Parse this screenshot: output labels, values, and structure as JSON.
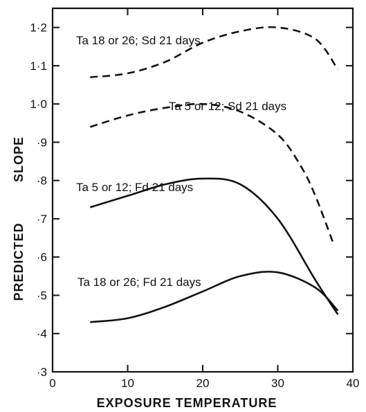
{
  "chart_data": {
    "type": "line",
    "title": "",
    "xlabel": "EXPOSURE TEMPERATURE",
    "ylabel_words": [
      "PREDICTED",
      "SLOPE"
    ],
    "xlim": [
      0,
      40
    ],
    "ylim": [
      0.3,
      1.25
    ],
    "x_ticks": [
      0,
      10,
      20,
      30,
      40
    ],
    "x_tick_labels": [
      "0",
      "10",
      "20",
      "30",
      "40"
    ],
    "y_ticks": [
      0.3,
      0.4,
      0.5,
      0.6,
      0.7,
      0.8,
      0.9,
      1.0,
      1.1,
      1.2
    ],
    "y_tick_labels": [
      "·3",
      "·4",
      "·5",
      "·6",
      "·7",
      "·8",
      "·9",
      "1·0",
      "1·1",
      "1·2"
    ],
    "grid": false,
    "series": [
      {
        "name": "Ta 18 or 26; Sd 21 days",
        "style": "dashed",
        "x": [
          5,
          10,
          15,
          20,
          25,
          30,
          35,
          38
        ],
        "y": [
          1.07,
          1.08,
          1.11,
          1.16,
          1.19,
          1.2,
          1.17,
          1.09
        ]
      },
      {
        "name": "Ta 5 or 12; Sd 21 days",
        "style": "dashed",
        "x": [
          5,
          10,
          15,
          20,
          25,
          30,
          33,
          35,
          37.5
        ],
        "y": [
          0.94,
          0.97,
          0.99,
          1.0,
          0.98,
          0.92,
          0.84,
          0.76,
          0.63
        ]
      },
      {
        "name": "Ta 5 or 12; Fd 21 days",
        "style": "solid",
        "x": [
          5,
          10,
          15,
          20,
          25,
          30,
          35,
          38
        ],
        "y": [
          0.73,
          0.76,
          0.79,
          0.805,
          0.79,
          0.7,
          0.54,
          0.45
        ]
      },
      {
        "name": "Ta 18 or 26; Fd 21 days",
        "style": "solid",
        "x": [
          5,
          10,
          15,
          20,
          25,
          30,
          35,
          38
        ],
        "y": [
          0.43,
          0.44,
          0.47,
          0.51,
          0.55,
          0.56,
          0.52,
          0.46
        ]
      }
    ]
  }
}
